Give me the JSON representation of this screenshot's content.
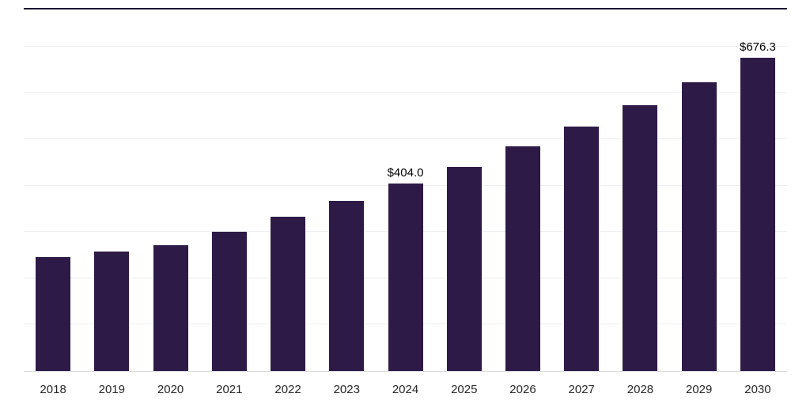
{
  "chart_data": {
    "type": "bar",
    "title": "",
    "xlabel": "",
    "ylabel": "",
    "categories": [
      "2018",
      "2019",
      "2020",
      "2021",
      "2022",
      "2023",
      "2024",
      "2025",
      "2026",
      "2027",
      "2028",
      "2029",
      "2030"
    ],
    "values": [
      246,
      258,
      272,
      300,
      333,
      367,
      404.0,
      440,
      484,
      528,
      574,
      623,
      676.3
    ],
    "point_labels": [
      "",
      "",
      "",
      "",
      "",
      "",
      "$404.0",
      "",
      "",
      "",
      "",
      "",
      "$676.3"
    ],
    "ylim": [
      0,
      780
    ],
    "grid": true,
    "grid_step": 100,
    "legend_position": "none",
    "bar_color": "#2e1a47",
    "gridline_color": "#efeff3",
    "axis_line_color": "#d9d9de",
    "top_border_color": "#191331"
  }
}
